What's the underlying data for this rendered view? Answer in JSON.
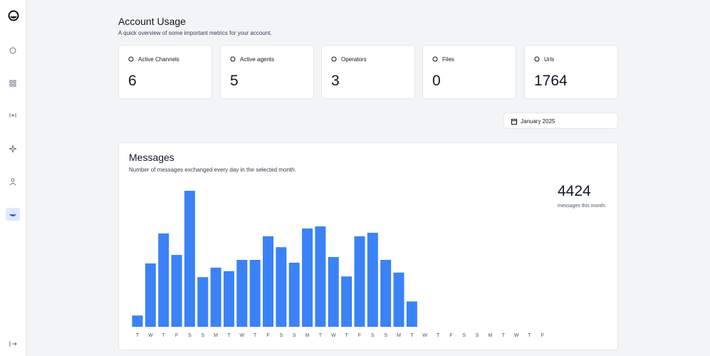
{
  "header": {
    "title": "Account Usage",
    "subtitle": "A quick overview of some important metrics for your account."
  },
  "stats": [
    {
      "label": "Active Channels",
      "value": 6
    },
    {
      "label": "Active agents",
      "value": 5
    },
    {
      "label": "Operators",
      "value": 3
    },
    {
      "label": "Files",
      "value": 0
    },
    {
      "label": "Urls",
      "value": 1764
    }
  ],
  "date_picker": "January 2025",
  "messages": {
    "title": "Messages",
    "subtitle": "Number of messages exchanged every day in the selected month.",
    "total": 4424,
    "total_label": "messages this month.",
    "chart_data": {
      "type": "bar",
      "categories": [
        "T",
        "W",
        "T",
        "F",
        "S",
        "S",
        "M",
        "T",
        "W",
        "T",
        "F",
        "S",
        "S",
        "M",
        "T",
        "W",
        "T",
        "F",
        "S",
        "S",
        "M",
        "T",
        "W",
        "T",
        "F",
        "S",
        "S",
        "M",
        "T",
        "W",
        "T",
        "F"
      ],
      "values": [
        32,
        180,
        265,
        204,
        386,
        141,
        168,
        158,
        190,
        190,
        257,
        226,
        182,
        279,
        285,
        198,
        143,
        257,
        267,
        190,
        154,
        72,
        null,
        null,
        null,
        null,
        null,
        null,
        null,
        null,
        null,
        null
      ],
      "color": "#3b82f6",
      "ylim": [
        0,
        390
      ]
    }
  }
}
